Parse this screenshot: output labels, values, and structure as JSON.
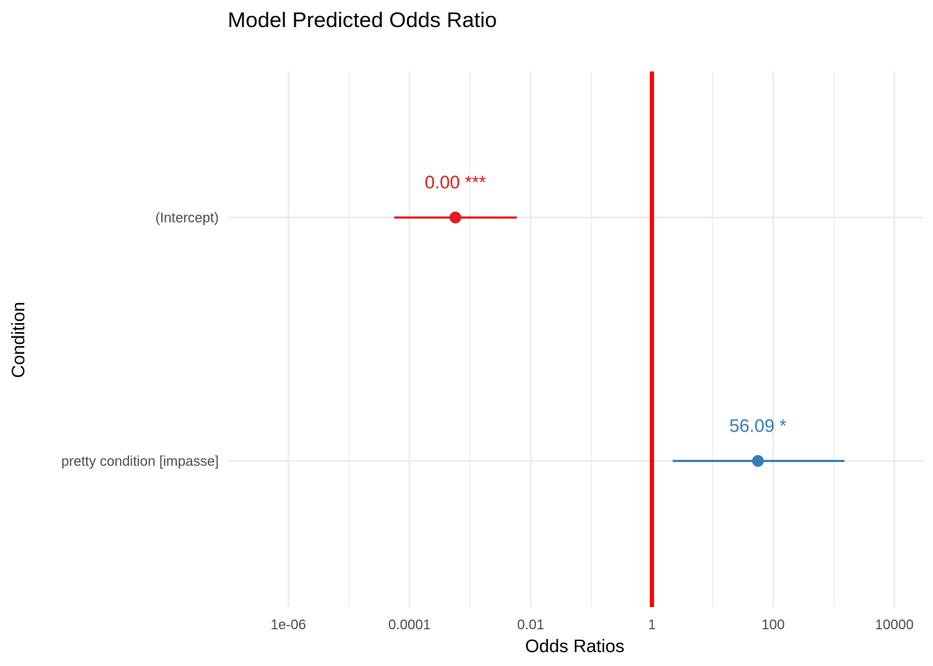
{
  "chart_data": {
    "type": "scatter",
    "title": "Model Predicted Odds Ratio",
    "xlabel": "Odds Ratios",
    "ylabel": "Condition",
    "x_scale": "log10",
    "xlim": [
      1e-07,
      30000
    ],
    "x_ticks": [
      {
        "value": 1e-06,
        "label": "1e-06"
      },
      {
        "value": 0.0001,
        "label": "0.0001"
      },
      {
        "value": 0.01,
        "label": "0.01"
      },
      {
        "value": 1,
        "label": "1"
      },
      {
        "value": 100,
        "label": "100"
      },
      {
        "value": 10000,
        "label": "10000"
      }
    ],
    "categories": [
      "(Intercept)",
      "pretty condition [impasse]"
    ],
    "reference_line": {
      "x": 1,
      "color": "#ff0000"
    },
    "grid": true,
    "legend": "none",
    "series": [
      {
        "category": "(Intercept)",
        "estimate": 0.00057,
        "ci_low": 5.6e-05,
        "ci_high": 0.0059,
        "label": "0.00 ***",
        "color": "#e41a1c"
      },
      {
        "category": "pretty condition [impasse]",
        "estimate": 56.09,
        "ci_low": 2.2,
        "ci_high": 1500,
        "label": "56.09 *",
        "color": "#377eb8"
      }
    ]
  }
}
